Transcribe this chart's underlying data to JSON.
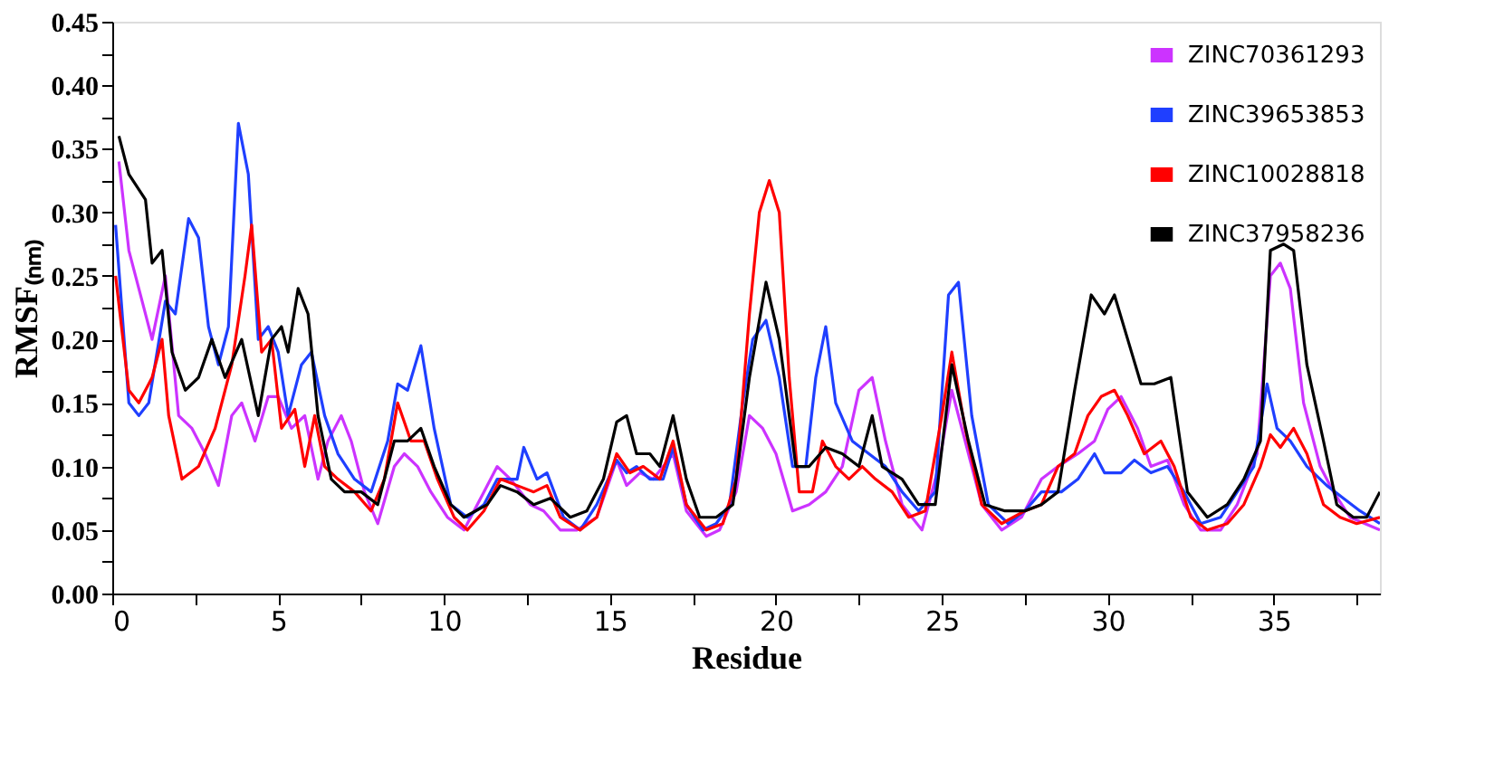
{
  "chart_data": {
    "type": "line",
    "xlabel": "Residue",
    "ylabel": "RMSF₍ₙₘ₎",
    "xlim": [
      0,
      38.2
    ],
    "ylim": [
      0,
      0.45
    ],
    "xticks": [
      0,
      {
        "value": 2.5,
        "label": null
      },
      5,
      {
        "value": 7.5,
        "label": null
      },
      10,
      {
        "value": 12.5,
        "label": null
      },
      15,
      {
        "value": 17.5,
        "label": null
      },
      20,
      {
        "value": 22.5,
        "label": null
      },
      25,
      {
        "value": 27.5,
        "label": null
      },
      30,
      {
        "value": 32.5,
        "label": null
      },
      35,
      {
        "value": 37.5,
        "label": null
      }
    ],
    "yticks": [
      {
        "value": 0,
        "label": "0.00"
      },
      {
        "value": 0.025,
        "label": null
      },
      {
        "value": 0.05,
        "label": "0.05"
      },
      {
        "value": 0.075,
        "label": null
      },
      {
        "value": 0.1,
        "label": "0.10"
      },
      {
        "value": 0.125,
        "label": null
      },
      {
        "value": 0.15,
        "label": "0.15"
      },
      {
        "value": 0.175,
        "label": null
      },
      {
        "value": 0.2,
        "label": "0.20"
      },
      {
        "value": 0.225,
        "label": null
      },
      {
        "value": 0.25,
        "label": "0.25"
      },
      {
        "value": 0.275,
        "label": null
      },
      {
        "value": 0.3,
        "label": "0.30"
      },
      {
        "value": 0.325,
        "label": null
      },
      {
        "value": 0.35,
        "label": "0.35"
      },
      {
        "value": 0.375,
        "label": null
      },
      {
        "value": 0.4,
        "label": "0.40"
      },
      {
        "value": 0.425,
        "label": null
      },
      {
        "value": 0.45,
        "label": "0.45"
      }
    ],
    "grid": false,
    "legend": "top right",
    "marker": "none",
    "line_style": "solid",
    "series": [
      {
        "name": "ZINC70361293",
        "color": "#cc33ff",
        "x": [
          0.2,
          0.5,
          0.8,
          1.2,
          1.6,
          2.0,
          2.4,
          2.8,
          3.2,
          3.6,
          3.9,
          4.3,
          4.7,
          5.0,
          5.4,
          5.8,
          6.2,
          6.5,
          6.9,
          7.2,
          7.6,
          8.0,
          8.5,
          8.8,
          9.2,
          9.6,
          10.1,
          10.6,
          11.2,
          11.6,
          12.0,
          12.6,
          13.0,
          13.5,
          14.0,
          14.6,
          15.2,
          15.5,
          15.9,
          16.3,
          16.9,
          17.3,
          17.9,
          18.3,
          18.8,
          19.2,
          19.6,
          20.0,
          20.5,
          21.0,
          21.5,
          22.0,
          22.5,
          22.9,
          23.3,
          23.8,
          24.4,
          24.9,
          25.3,
          25.7,
          26.2,
          26.8,
          27.4,
          28.0,
          28.5,
          29.1,
          29.6,
          30.0,
          30.4,
          30.9,
          31.3,
          31.8,
          32.3,
          32.8,
          33.4,
          33.9,
          34.5,
          34.9,
          35.2,
          35.5,
          35.9,
          36.4,
          36.8,
          37.3,
          38.2
        ],
        "values": [
          0.34,
          0.27,
          0.24,
          0.2,
          0.25,
          0.14,
          0.13,
          0.11,
          0.085,
          0.14,
          0.15,
          0.12,
          0.155,
          0.155,
          0.13,
          0.14,
          0.09,
          0.12,
          0.14,
          0.12,
          0.08,
          0.055,
          0.1,
          0.11,
          0.1,
          0.08,
          0.06,
          0.05,
          0.08,
          0.1,
          0.09,
          0.07,
          0.065,
          0.05,
          0.05,
          0.06,
          0.105,
          0.085,
          0.095,
          0.09,
          0.11,
          0.065,
          0.045,
          0.05,
          0.08,
          0.14,
          0.13,
          0.11,
          0.065,
          0.07,
          0.08,
          0.1,
          0.16,
          0.17,
          0.12,
          0.07,
          0.05,
          0.1,
          0.16,
          0.12,
          0.07,
          0.05,
          0.06,
          0.09,
          0.1,
          0.11,
          0.12,
          0.145,
          0.155,
          0.13,
          0.1,
          0.105,
          0.07,
          0.05,
          0.05,
          0.07,
          0.11,
          0.25,
          0.26,
          0.24,
          0.15,
          0.1,
          0.08,
          0.06,
          0.05
        ]
      },
      {
        "name": "ZINC39653853",
        "color": "#1f3fff",
        "x": [
          0.1,
          0.5,
          0.8,
          1.1,
          1.6,
          1.9,
          2.3,
          2.6,
          2.9,
          3.2,
          3.5,
          3.8,
          4.1,
          4.4,
          4.7,
          5.0,
          5.3,
          5.7,
          6.0,
          6.4,
          6.8,
          7.3,
          7.8,
          8.3,
          8.6,
          8.9,
          9.3,
          9.7,
          10.2,
          10.7,
          11.2,
          11.6,
          12.2,
          12.4,
          12.8,
          13.1,
          13.6,
          14.1,
          14.6,
          15.2,
          15.5,
          15.8,
          16.2,
          16.6,
          16.9,
          17.3,
          17.8,
          18.2,
          18.6,
          19.0,
          19.3,
          19.7,
          20.1,
          20.5,
          20.9,
          21.2,
          21.5,
          21.8,
          22.3,
          22.8,
          23.3,
          23.8,
          24.3,
          24.8,
          25.2,
          25.5,
          25.9,
          26.4,
          27.0,
          27.5,
          28.0,
          28.6,
          29.1,
          29.6,
          29.9,
          30.4,
          30.8,
          31.3,
          31.8,
          32.3,
          32.8,
          33.4,
          33.9,
          34.4,
          34.8,
          35.1,
          35.5,
          36.0,
          36.6,
          37.1,
          37.6,
          38.2
        ],
        "values": [
          0.29,
          0.15,
          0.14,
          0.15,
          0.23,
          0.22,
          0.295,
          0.28,
          0.21,
          0.18,
          0.21,
          0.37,
          0.33,
          0.2,
          0.21,
          0.19,
          0.14,
          0.18,
          0.19,
          0.14,
          0.11,
          0.09,
          0.08,
          0.12,
          0.165,
          0.16,
          0.195,
          0.13,
          0.07,
          0.06,
          0.07,
          0.09,
          0.09,
          0.115,
          0.09,
          0.095,
          0.06,
          0.05,
          0.07,
          0.105,
          0.095,
          0.1,
          0.09,
          0.09,
          0.115,
          0.07,
          0.05,
          0.055,
          0.07,
          0.15,
          0.2,
          0.215,
          0.17,
          0.1,
          0.1,
          0.17,
          0.21,
          0.15,
          0.12,
          0.11,
          0.1,
          0.08,
          0.065,
          0.08,
          0.235,
          0.245,
          0.14,
          0.07,
          0.055,
          0.065,
          0.08,
          0.08,
          0.09,
          0.11,
          0.095,
          0.095,
          0.105,
          0.095,
          0.1,
          0.08,
          0.055,
          0.06,
          0.08,
          0.1,
          0.165,
          0.13,
          0.12,
          0.1,
          0.085,
          0.075,
          0.065,
          0.055
        ]
      },
      {
        "name": "ZINC10028818",
        "color": "#ff0000",
        "x": [
          0.1,
          0.5,
          0.8,
          1.2,
          1.5,
          1.7,
          2.1,
          2.6,
          3.1,
          3.6,
          4.0,
          4.2,
          4.5,
          4.8,
          5.1,
          5.5,
          5.8,
          6.1,
          6.4,
          6.8,
          7.3,
          7.8,
          8.2,
          8.6,
          9.0,
          9.4,
          9.8,
          10.3,
          10.7,
          11.2,
          11.7,
          12.2,
          12.7,
          13.1,
          13.5,
          14.1,
          14.6,
          15.2,
          15.6,
          16.0,
          16.5,
          16.9,
          17.3,
          17.9,
          18.4,
          18.8,
          19.2,
          19.5,
          19.8,
          20.1,
          20.4,
          20.7,
          21.1,
          21.4,
          21.8,
          22.2,
          22.6,
          23.0,
          23.5,
          24.0,
          24.5,
          25.0,
          25.3,
          25.7,
          26.2,
          26.8,
          27.5,
          28.0,
          28.5,
          29.0,
          29.4,
          29.8,
          30.2,
          30.6,
          31.1,
          31.6,
          32.0,
          32.5,
          33.0,
          33.6,
          34.1,
          34.6,
          34.9,
          35.2,
          35.6,
          36.0,
          36.5,
          37.0,
          37.5,
          38.2
        ],
        "values": [
          0.25,
          0.16,
          0.15,
          0.17,
          0.2,
          0.14,
          0.09,
          0.1,
          0.13,
          0.18,
          0.25,
          0.29,
          0.19,
          0.2,
          0.13,
          0.145,
          0.1,
          0.14,
          0.1,
          0.09,
          0.08,
          0.065,
          0.09,
          0.15,
          0.12,
          0.12,
          0.09,
          0.06,
          0.05,
          0.065,
          0.09,
          0.085,
          0.08,
          0.085,
          0.06,
          0.05,
          0.06,
          0.11,
          0.095,
          0.1,
          0.09,
          0.12,
          0.07,
          0.05,
          0.055,
          0.09,
          0.22,
          0.3,
          0.325,
          0.3,
          0.17,
          0.08,
          0.08,
          0.12,
          0.1,
          0.09,
          0.1,
          0.09,
          0.08,
          0.06,
          0.065,
          0.14,
          0.19,
          0.13,
          0.07,
          0.055,
          0.065,
          0.07,
          0.1,
          0.11,
          0.14,
          0.155,
          0.16,
          0.14,
          0.11,
          0.12,
          0.1,
          0.06,
          0.05,
          0.055,
          0.07,
          0.1,
          0.125,
          0.115,
          0.13,
          0.11,
          0.07,
          0.06,
          0.055,
          0.06
        ]
      },
      {
        "name": "ZINC37958236",
        "color": "#000000",
        "x": [
          0.2,
          0.5,
          1.0,
          1.2,
          1.5,
          1.8,
          2.2,
          2.6,
          3.0,
          3.4,
          3.9,
          4.4,
          4.8,
          5.1,
          5.3,
          5.6,
          5.9,
          6.2,
          6.6,
          7.0,
          7.5,
          8.0,
          8.5,
          8.9,
          9.3,
          9.7,
          10.2,
          10.6,
          11.3,
          11.7,
          12.2,
          12.7,
          13.2,
          13.8,
          14.3,
          14.8,
          15.2,
          15.5,
          15.8,
          16.2,
          16.5,
          16.9,
          17.3,
          17.7,
          18.2,
          18.7,
          19.2,
          19.7,
          20.1,
          20.6,
          21.0,
          21.5,
          22.0,
          22.5,
          22.9,
          23.2,
          23.8,
          24.3,
          24.8,
          25.3,
          25.8,
          26.3,
          26.9,
          27.5,
          28.0,
          28.5,
          29.0,
          29.5,
          29.9,
          30.2,
          30.6,
          31.0,
          31.4,
          31.9,
          32.4,
          33.0,
          33.6,
          34.1,
          34.6,
          34.9,
          35.3,
          35.6,
          36.0,
          36.5,
          36.9,
          37.4,
          37.8,
          38.2
        ],
        "values": [
          0.36,
          0.33,
          0.31,
          0.26,
          0.27,
          0.19,
          0.16,
          0.17,
          0.2,
          0.17,
          0.2,
          0.14,
          0.2,
          0.21,
          0.19,
          0.24,
          0.22,
          0.14,
          0.09,
          0.08,
          0.08,
          0.07,
          0.12,
          0.12,
          0.13,
          0.1,
          0.07,
          0.06,
          0.07,
          0.085,
          0.08,
          0.07,
          0.075,
          0.06,
          0.065,
          0.09,
          0.135,
          0.14,
          0.11,
          0.11,
          0.1,
          0.14,
          0.09,
          0.06,
          0.06,
          0.07,
          0.17,
          0.245,
          0.2,
          0.1,
          0.1,
          0.115,
          0.11,
          0.1,
          0.14,
          0.1,
          0.09,
          0.07,
          0.07,
          0.18,
          0.12,
          0.07,
          0.065,
          0.065,
          0.07,
          0.08,
          0.16,
          0.235,
          0.22,
          0.235,
          0.2,
          0.165,
          0.165,
          0.17,
          0.08,
          0.06,
          0.07,
          0.09,
          0.12,
          0.27,
          0.275,
          0.27,
          0.18,
          0.12,
          0.07,
          0.06,
          0.06,
          0.08
        ]
      }
    ]
  }
}
